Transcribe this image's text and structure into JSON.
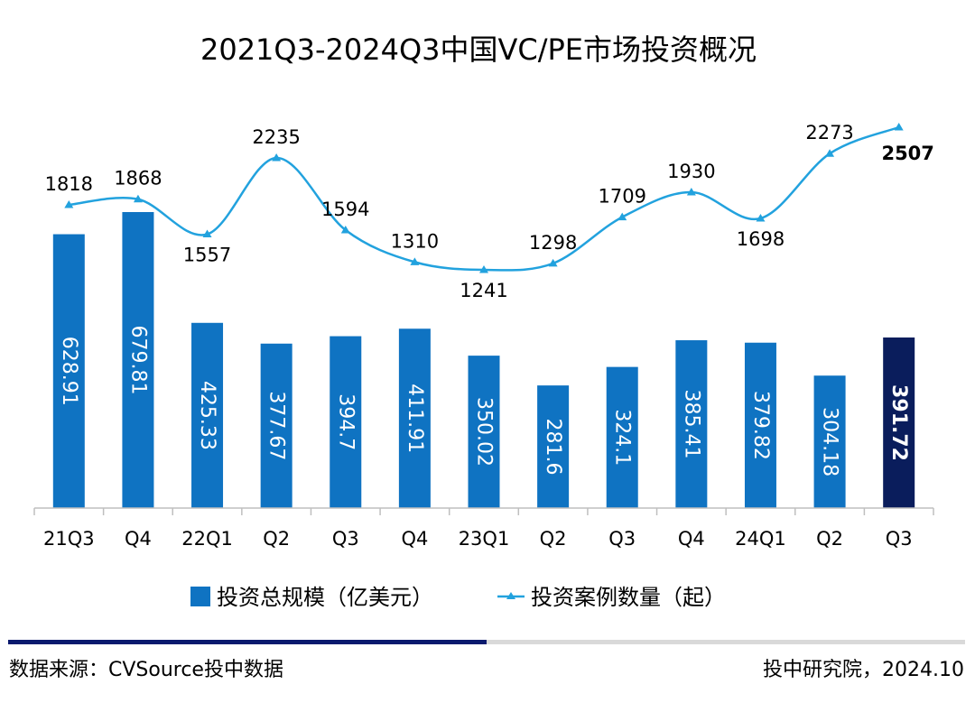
{
  "chart_data": {
    "type": "bar",
    "title": "2021Q3-2024Q3中国VC/PE市场投资概况",
    "categories": [
      "21Q3",
      "Q4",
      "22Q1",
      "Q2",
      "Q3",
      "Q4",
      "23Q1",
      "Q2",
      "Q3",
      "Q4",
      "24Q1",
      "Q2",
      "Q3"
    ],
    "series": [
      {
        "name": "投资总规模（亿美元）",
        "type": "bar",
        "values": [
          628.91,
          679.81,
          425.33,
          377.67,
          394.7,
          411.91,
          350.02,
          281.6,
          324.1,
          385.41,
          379.82,
          304.18,
          391.72
        ],
        "labels": [
          "628.91",
          "679.81",
          "425.33",
          "377.67",
          "394.7",
          "411.91",
          "350.02",
          "281.6",
          "324.1",
          "385.41",
          "379.82",
          "304.18",
          "391.72"
        ],
        "color": "#0f73c2",
        "highlight_color": "#0a1d5c",
        "highlight_index": 12
      },
      {
        "name": "投资案例数量（起）",
        "type": "line",
        "values": [
          1818,
          1868,
          1557,
          2235,
          1594,
          1310,
          1241,
          1298,
          1709,
          1930,
          1698,
          2273,
          2507
        ],
        "labels": [
          "1818",
          "1868",
          "1557",
          "2235",
          "1594",
          "1310",
          "1241",
          "1298",
          "1709",
          "1930",
          "1698",
          "2273",
          "2507"
        ],
        "color": "#22a2de",
        "marker": "triangle",
        "highlight_index": 12
      }
    ],
    "legend_position": "bottom",
    "grid": false
  },
  "footer": {
    "source": "数据来源：CVSource投中数据",
    "publisher": "投中研究院，2024.10"
  }
}
